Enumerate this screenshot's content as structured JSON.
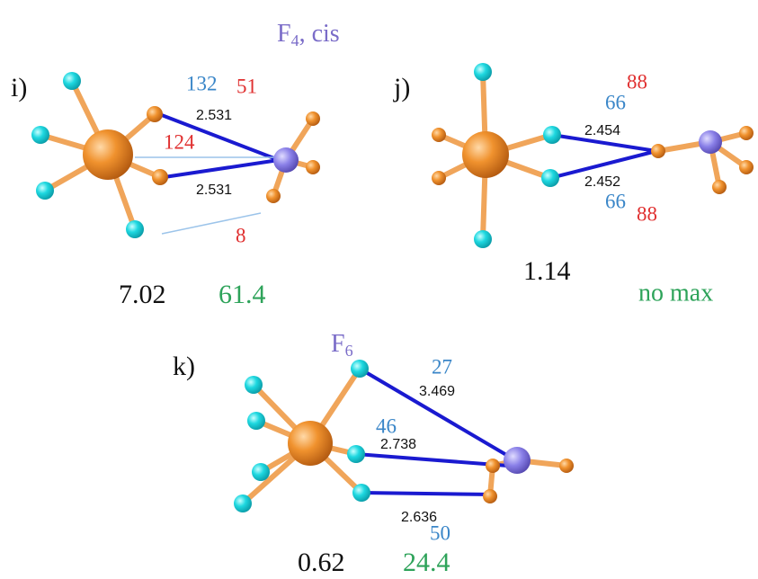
{
  "title": {
    "base": "F",
    "sub": "4",
    "rest": ", cis"
  },
  "panel_i": {
    "label": "i)",
    "blue": "132",
    "red_top": "51",
    "distance_top": "2.531",
    "red_mid": "124",
    "distance_bottom": "2.531",
    "red_bottom": "8",
    "energy": "7.02",
    "green": "61.4"
  },
  "panel_j": {
    "label": "j)",
    "red_top": "88",
    "blue_top": "66",
    "distance_top": "2.454",
    "distance_bottom": "2.452",
    "blue_bottom": "66",
    "red_bottom": "88",
    "energy": "1.14",
    "green": "no max"
  },
  "panel_k": {
    "title": {
      "base": "F",
      "sub": "6"
    },
    "label": "k)",
    "blue_top": "27",
    "distance_top": "3.469",
    "blue_mid": "46",
    "distance_mid": "2.738",
    "distance_bottom": "2.636",
    "blue_bottom": "50",
    "energy": "0.62",
    "green": "24.4"
  }
}
